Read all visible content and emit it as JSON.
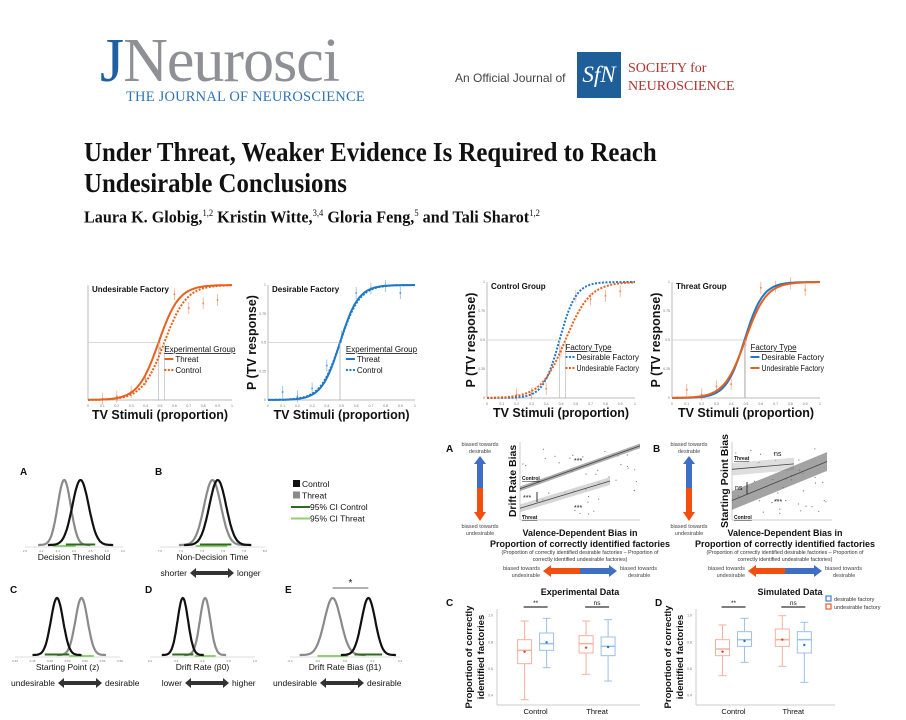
{
  "header": {
    "journal_logo": "JNeurosci",
    "journal_logo_j": "J",
    "journal_logo_rest": "Neurosci",
    "journal_subtitle": "THE JOURNAL OF NEUROSCIENCE",
    "official_text": "An Official Journal of",
    "society_logo": "SfN",
    "society_line1": "SOCIETY for",
    "society_line2": "NEUROSCIENCE"
  },
  "paper": {
    "title_line1": "Under Threat, Weaker Evidence Is Required to Reach",
    "title_line2": "Undesirable Conclusions",
    "authors": [
      {
        "name": "Laura K. Globig,",
        "aff": "1,2"
      },
      {
        "name": " Kristin Witte,",
        "aff": "3,4"
      },
      {
        "name": " Gloria Feng,",
        "aff": "5"
      },
      {
        "name": " and Tali Sharot",
        "aff": "1,2"
      }
    ]
  },
  "colors": {
    "orange": "#e8601c",
    "blue": "#1f78c8",
    "black": "#111111",
    "gray": "#8a8a8a",
    "ci_control": "#2f6b1f",
    "ci_threat": "#8fd16e",
    "bias_blue": "#3f6fc4",
    "bias_orange": "#f24f0f"
  },
  "chart_data": [
    {
      "type": "line",
      "id": "sig1",
      "title": "Undesirable Factory",
      "xlabel": "TV Stimuli (proportion)",
      "ylabel": "",
      "xlim": [
        0,
        1
      ],
      "ylim": [
        0,
        1
      ],
      "legend_title": "Experimental Group",
      "legend_placement": "bottom-right",
      "xticks": [
        "0",
        "0.1",
        "0.2",
        "0.3",
        "0.4",
        "0.5",
        "0.6",
        "0.7",
        "0.8",
        "0.9",
        "1"
      ],
      "series": [
        {
          "name": "Threat",
          "color": "#e8601c",
          "dashed": false,
          "p50": 0.49,
          "slope": 14
        },
        {
          "name": "Control",
          "color": "#e8601c",
          "dashed": true,
          "p50": 0.53,
          "slope": 13
        }
      ],
      "points": [
        [
          0.1,
          0.01
        ],
        [
          0.2,
          0.03
        ],
        [
          0.3,
          0.07
        ],
        [
          0.4,
          0.18
        ],
        [
          0.5,
          0.45
        ],
        [
          0.6,
          0.92
        ],
        [
          0.7,
          0.8
        ],
        [
          0.8,
          0.84
        ],
        [
          0.9,
          0.87
        ]
      ]
    },
    {
      "type": "line",
      "id": "sig2",
      "title": "Desirable Factory",
      "xlabel": "TV Stimuli (proportion)",
      "ylabel": "P (TV response)",
      "xlim": [
        0,
        1
      ],
      "ylim": [
        0,
        1
      ],
      "legend_title": "Experimental Group",
      "legend_placement": "bottom-right",
      "yticks": [
        "0",
        "0.25",
        "0.5",
        "0.75",
        "1"
      ],
      "xticks": [
        "0",
        "0.1",
        "0.2",
        "0.3",
        "0.4",
        "0.5",
        "0.6",
        "0.7",
        "0.8",
        "0.9",
        "1"
      ],
      "series": [
        {
          "name": "Threat",
          "color": "#1f78c8",
          "dashed": false,
          "p50": 0.49,
          "slope": 16
        },
        {
          "name": "Control",
          "color": "#1f78c8",
          "dashed": true,
          "p50": 0.49,
          "slope": 15
        }
      ],
      "points": [
        [
          0.1,
          0.07
        ],
        [
          0.2,
          0.03
        ],
        [
          0.3,
          0.1
        ],
        [
          0.4,
          0.3
        ],
        [
          0.5,
          0.55
        ],
        [
          0.6,
          0.93
        ],
        [
          0.7,
          0.97
        ],
        [
          0.8,
          0.99
        ],
        [
          0.9,
          0.93
        ]
      ]
    },
    {
      "type": "line",
      "id": "sig3",
      "title": "Control Group",
      "xlabel": "TV Stimuli (proportion)",
      "ylabel": "P (TV response)",
      "xlim": [
        0,
        1
      ],
      "ylim": [
        0,
        1
      ],
      "legend_title": "Factory Type",
      "legend_placement": "bottom-right",
      "yticks": [
        "0",
        "0.25",
        "0.5",
        "0.75",
        "1"
      ],
      "xticks": [
        "0",
        "0.1",
        "0.2",
        "0.3",
        "0.4",
        "0.5",
        "0.6",
        "0.7",
        "0.8",
        "0.9",
        "1"
      ],
      "series": [
        {
          "name": "Desirable Factory",
          "color": "#1f78c8",
          "dashed": true,
          "p50": 0.49,
          "slope": 18
        },
        {
          "name": "Undesirable Factory",
          "color": "#e8601c",
          "dashed": true,
          "p50": 0.53,
          "slope": 12
        }
      ],
      "points": [
        [
          0.2,
          0.03
        ],
        [
          0.3,
          0.04
        ],
        [
          0.4,
          0.08
        ],
        [
          0.5,
          0.4
        ],
        [
          0.6,
          0.88
        ],
        [
          0.7,
          0.85
        ],
        [
          0.8,
          0.88
        ],
        [
          0.9,
          0.92
        ]
      ]
    },
    {
      "type": "line",
      "id": "sig4",
      "title": "Threat Group",
      "xlabel": "TV Stimuli (proportion)",
      "ylabel": "P (TV response)",
      "xlim": [
        0,
        1
      ],
      "ylim": [
        0,
        1
      ],
      "legend_title": "Factory Type",
      "legend_placement": "bottom-right",
      "yticks": [
        "0",
        "0.25",
        "0.5",
        "0.75",
        "1"
      ],
      "xticks": [
        "0",
        "0.1",
        "0.2",
        "0.3",
        "0.4",
        "0.5",
        "0.6",
        "0.7",
        "0.8",
        "0.9",
        "1"
      ],
      "series": [
        {
          "name": "Desirable Factory",
          "color": "#1f78c8",
          "dashed": false,
          "p50": 0.49,
          "slope": 16
        },
        {
          "name": "Undesirable Factory",
          "color": "#e8601c",
          "dashed": false,
          "p50": 0.495,
          "slope": 14
        }
      ],
      "points": [
        [
          0.1,
          0.07
        ],
        [
          0.2,
          0.03
        ],
        [
          0.3,
          0.1
        ],
        [
          0.4,
          0.12
        ],
        [
          0.5,
          0.5
        ],
        [
          0.6,
          0.95
        ],
        [
          0.7,
          0.96
        ],
        [
          0.8,
          0.99
        ],
        [
          0.9,
          0.93
        ]
      ]
    }
  ],
  "posteriors": {
    "legend": [
      {
        "label": "Control",
        "type": "square",
        "color": "#111111"
      },
      {
        "label": "Threat",
        "type": "square",
        "color": "#8a8a8a"
      },
      {
        "label": "95% CI Control",
        "type": "line",
        "color": "#2f6b1f"
      },
      {
        "label": "95% CI Threat",
        "type": "line",
        "color": "#8fd16e"
      }
    ],
    "panels": [
      {
        "letter": "A",
        "xlabel": "Decision Threshold",
        "xlim": [
          2.0,
          3.2
        ],
        "xticks": [
          "2.0",
          "2.2",
          "2.4",
          "2.6",
          "2.8",
          "3.0",
          "3.2"
        ],
        "control": {
          "mean": 2.68,
          "sd": 0.1,
          "ci": [
            2.5,
            2.86
          ]
        },
        "threat": {
          "mean": 2.48,
          "sd": 0.08,
          "ci": [
            2.34,
            2.62
          ]
        },
        "arrow": null
      },
      {
        "letter": "B",
        "xlabel": "Non-Decision Time",
        "xlim": [
          7.0,
          8.0
        ],
        "xticks": [
          "7.0",
          "7.2",
          "7.4",
          "7.6",
          "7.8",
          "8.0"
        ],
        "control": {
          "mean": 7.55,
          "sd": 0.08,
          "ci": [
            7.38,
            7.68
          ]
        },
        "threat": {
          "mean": 7.5,
          "sd": 0.08,
          "ci": [
            7.34,
            7.64
          ]
        },
        "arrow": {
          "left": "shorter",
          "right": "longer"
        }
      },
      {
        "letter": "C",
        "xlabel": "Starting Point (z)",
        "xlim": [
          0.44,
          0.56
        ],
        "xticks": [
          "0.44",
          "0.46",
          "0.48",
          "0.50",
          "0.52",
          "0.54",
          "0.56"
        ],
        "control": {
          "mean": 0.488,
          "sd": 0.007,
          "ci": [
            0.474,
            0.502
          ]
        },
        "threat": {
          "mean": 0.516,
          "sd": 0.007,
          "ci": [
            0.502,
            0.53
          ]
        },
        "arrow": {
          "left": "undesirable",
          "right": "desirable"
        }
      },
      {
        "letter": "D",
        "xlabel": "Drift Rate (β0)",
        "xlim": [
          0.2,
          1.0
        ],
        "xticks": [
          "0.2",
          "0.4",
          "0.6",
          "0.8",
          "1.0"
        ],
        "control": {
          "mean": 0.45,
          "sd": 0.04,
          "ci": [
            0.37,
            0.53
          ]
        },
        "threat": {
          "mean": 0.62,
          "sd": 0.04,
          "ci": [
            0.54,
            0.7
          ]
        },
        "arrow": {
          "left": "lower",
          "right": "higher"
        }
      },
      {
        "letter": "E",
        "xlabel": "Drift Rate Bias (β1)",
        "xlim": [
          -0.4,
          0.4
        ],
        "xticks": [
          "-0.4",
          "-0.2",
          "0.0",
          "0.2",
          "0.4"
        ],
        "control": {
          "mean": 0.17,
          "sd": 0.05,
          "ci": [
            0.07,
            0.27
          ]
        },
        "threat": {
          "mean": -0.09,
          "sd": 0.06,
          "ci": [
            -0.2,
            0.02
          ]
        },
        "arrow": {
          "left": "undesirable",
          "right": "desirable"
        },
        "significance": "*"
      }
    ]
  },
  "regression": {
    "panels": [
      {
        "letter": "A",
        "ylabel": "Drift Rate Bias",
        "top_label": "biased towards desirable",
        "bottom_label": "biased towards undesirable",
        "lines": [
          {
            "group": "Control",
            "shade": "#777777",
            "from": [
              0,
              0.4
            ],
            "to": [
              1,
              0.95
            ],
            "band": 0.03
          },
          {
            "group": "Threat",
            "shade": "#bbbbbb",
            "from": [
              0,
              0.15
            ],
            "to": [
              0.75,
              0.5
            ],
            "band": 0.05
          }
        ],
        "labels": {
          "control": "Control",
          "threat": "Threat",
          "slope_control": "***",
          "slope_threat": "***",
          "diff": "***"
        }
      },
      {
        "letter": "B",
        "ylabel": "Starting Point Bias",
        "top_label": "biased towards desirable",
        "bottom_label": "biased towards undesirable",
        "lines": [
          {
            "group": "Threat",
            "shade": "#c8c8c8",
            "from": [
              0,
              0.65
            ],
            "to": [
              0.62,
              0.72
            ],
            "band": 0.08
          },
          {
            "group": "Control",
            "shade": "#666666",
            "from": [
              0,
              0.25
            ],
            "to": [
              0.95,
              0.75
            ],
            "band": 0.12
          }
        ],
        "labels": {
          "control": "Control",
          "threat": "Threat",
          "slope_control": "***",
          "slope_threat": "ns",
          "diff": "ns"
        }
      }
    ],
    "xtitle1": "Valence-Dependent Bias in",
    "xtitle2": "Proportion of correctly identified factories",
    "xnote1": "(Proportion of correctly identified desirable factories – Proportion of",
    "xnote2": "correctly identified undesirable factories)",
    "left_label": "biased towards undesirable",
    "right_label": "biased towards desirable"
  },
  "boxplots": {
    "ylabel": "Proportion of correctly identified factories",
    "ylim": [
      0.33,
      1.05
    ],
    "yticks": [
      0.4,
      0.6,
      0.8,
      1.0
    ],
    "groups": [
      "Control",
      "Threat"
    ],
    "legend": [
      {
        "label": "desirable factory",
        "color": "#3f7fd0"
      },
      {
        "label": "undesirable factory",
        "color": "#f05a30"
      }
    ],
    "panels": [
      {
        "letter": "C",
        "title": "Experimental Data",
        "sig": [
          "**",
          "ns"
        ],
        "boxes": [
          [
            {
              "type": "undesirable",
              "min": 0.37,
              "q1": 0.64,
              "median": 0.74,
              "q3": 0.82,
              "max": 0.96,
              "mean": 0.73
            },
            {
              "type": "desirable",
              "min": 0.61,
              "q1": 0.74,
              "median": 0.79,
              "q3": 0.87,
              "max": 0.98,
              "mean": 0.8
            }
          ],
          [
            {
              "type": "undesirable",
              "min": 0.56,
              "q1": 0.72,
              "median": 0.79,
              "q3": 0.85,
              "max": 0.96,
              "mean": 0.76
            },
            {
              "type": "desirable",
              "min": 0.51,
              "q1": 0.7,
              "median": 0.77,
              "q3": 0.84,
              "max": 0.97,
              "mean": 0.765
            }
          ]
        ]
      },
      {
        "letter": "D",
        "title": "Simulated Data",
        "sig": [
          "**",
          "ns"
        ],
        "boxes": [
          [
            {
              "type": "undesirable",
              "min": 0.55,
              "q1": 0.7,
              "median": 0.75,
              "q3": 0.82,
              "max": 0.93,
              "mean": 0.73
            },
            {
              "type": "desirable",
              "min": 0.65,
              "q1": 0.77,
              "median": 0.82,
              "q3": 0.88,
              "max": 0.98,
              "mean": 0.81
            }
          ],
          [
            {
              "type": "undesirable",
              "min": 0.62,
              "q1": 0.77,
              "median": 0.82,
              "q3": 0.9,
              "max": 1.0,
              "mean": 0.82
            },
            {
              "type": "desirable",
              "min": 0.5,
              "q1": 0.72,
              "median": 0.82,
              "q3": 0.88,
              "max": 0.95,
              "mean": 0.78
            }
          ]
        ]
      }
    ]
  }
}
